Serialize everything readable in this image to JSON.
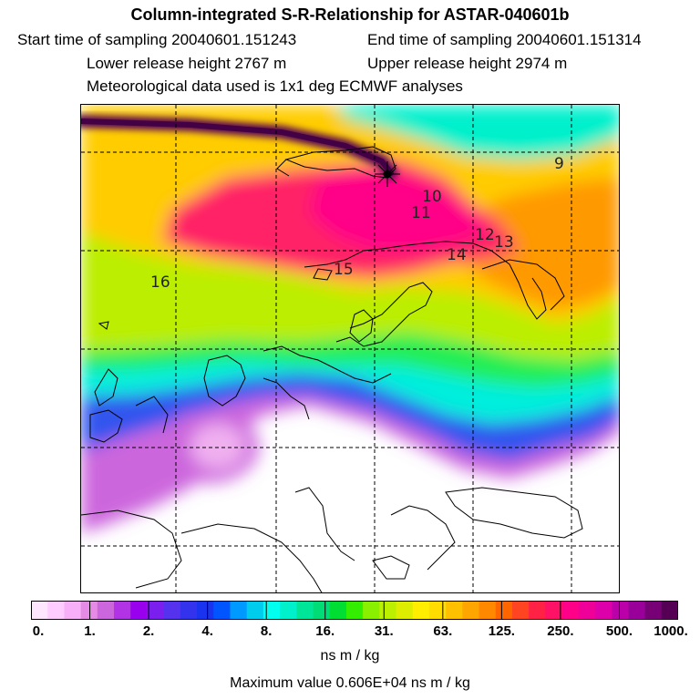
{
  "header": {
    "title": "Column-integrated S-R-Relationship for ASTAR-040601b",
    "start": "Start time of sampling 20040601.151243",
    "end": "End time of sampling 20040601.151314",
    "lower": "Lower release height 2767 m",
    "upper": "Upper release height 2974 m",
    "met": "Meteorological data used is 1x1 deg ECMWF analyses"
  },
  "map": {
    "day_labels": [
      {
        "text": "9"
      },
      {
        "text": "10"
      },
      {
        "text": "11"
      },
      {
        "text": "12"
      },
      {
        "text": "13"
      },
      {
        "text": "14"
      },
      {
        "text": "15"
      },
      {
        "text": "16"
      }
    ]
  },
  "colorbar": {
    "colors": [
      "#ffe6ff",
      "#ffccff",
      "#f7b0f7",
      "#e58ae5",
      "#cc66dd",
      "#b233e6",
      "#9900ee",
      "#7a1fee",
      "#5533ee",
      "#3333ee",
      "#1a33ee",
      "#0055ff",
      "#0099ff",
      "#00ccee",
      "#00ffee",
      "#00f0cc",
      "#00e699",
      "#00dd77",
      "#00dd33",
      "#33ee00",
      "#88f000",
      "#bbf000",
      "#ddee00",
      "#ffee00",
      "#ffdd00",
      "#ffc000",
      "#ffa500",
      "#ff8800",
      "#ff6600",
      "#ff4422",
      "#ff2244",
      "#ff1166",
      "#ff0088",
      "#ee0099",
      "#dd00aa",
      "#bb00aa",
      "#990099",
      "#770077",
      "#550055"
    ],
    "labels": [
      "0.",
      "1.",
      "2.",
      "4.",
      "8.",
      "16.",
      "31.",
      "63.",
      "125.",
      "250.",
      "500.",
      "1000."
    ],
    "units": "ns m / kg"
  },
  "footer": {
    "max_value": "Maximum value  0.606E+04 ns m / kg"
  }
}
